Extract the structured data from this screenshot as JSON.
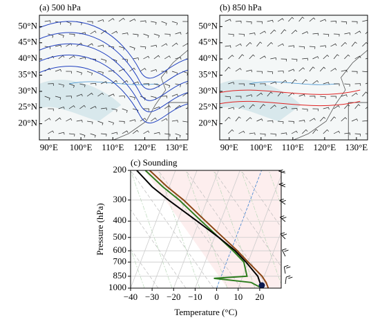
{
  "chart_data": [
    {
      "type": "map",
      "title": "(a) 500 hPa",
      "xlim": [
        87,
        133.5
      ],
      "ylim": [
        15,
        53.5
      ],
      "xticks": [
        {
          "value": 90,
          "label": "90°E"
        },
        {
          "value": 100,
          "label": "100°E"
        },
        {
          "value": 110,
          "label": "110°E"
        },
        {
          "value": 120,
          "label": "120°E"
        },
        {
          "value": 130,
          "label": "130°E"
        }
      ],
      "yticks": [
        {
          "value": 20,
          "label": "20°N"
        },
        {
          "value": 25,
          "label": "25°N"
        },
        {
          "value": 30,
          "label": "30°N"
        },
        {
          "value": 35,
          "label": "35°N"
        },
        {
          "value": 40,
          "label": "40°N"
        },
        {
          "value": 45,
          "label": "45°N"
        },
        {
          "value": 50,
          "label": "50°N"
        }
      ],
      "contour_color": "#1f3fbf"
    },
    {
      "type": "map",
      "title": "(b) 850 hPa",
      "xlim": [
        87,
        133.5
      ],
      "ylim": [
        15,
        53.5
      ],
      "xticks": [
        {
          "value": 90,
          "label": "90°E"
        },
        {
          "value": 100,
          "label": "100°E"
        },
        {
          "value": 110,
          "label": "110°E"
        },
        {
          "value": 120,
          "label": "120°E"
        },
        {
          "value": 130,
          "label": "130°E"
        }
      ],
      "yticks": [
        {
          "value": 20,
          "label": "20°N"
        },
        {
          "value": 25,
          "label": "25°N"
        },
        {
          "value": 30,
          "label": "30°N"
        },
        {
          "value": 35,
          "label": "35°N"
        },
        {
          "value": 40,
          "label": "40°N"
        },
        {
          "value": 45,
          "label": "45°N"
        },
        {
          "value": 50,
          "label": "50°N"
        }
      ],
      "contour_color": "#e02020"
    },
    {
      "type": "skewt",
      "title": "(c) Sounding",
      "x_label": "Temperature (°C)",
      "y_label": "Pressure (hPa)",
      "xlim": [
        -40,
        30
      ],
      "ylim": [
        1000,
        200
      ],
      "log_y": true,
      "xticks": [
        {
          "value": -40,
          "label": "−40"
        },
        {
          "value": -30,
          "label": "−30"
        },
        {
          "value": -20,
          "label": "−20"
        },
        {
          "value": -10,
          "label": "−10"
        },
        0,
        10,
        20
      ],
      "yticks": [
        200,
        300,
        400,
        500,
        600,
        700,
        850,
        1000
      ],
      "series": [
        {
          "color": "#8b4513",
          "y": [
            1000,
            925,
            850,
            700,
            600,
            500,
            400,
            300,
            250,
            200
          ],
          "values": [
            24,
            22,
            19,
            10,
            3,
            -6,
            -17,
            -31,
            -41,
            -52
          ]
        },
        {
          "color": "#2e7d1e",
          "y": [
            1000,
            925,
            875,
            850,
            700,
            600,
            500,
            400,
            300,
            250,
            200
          ],
          "values": [
            21,
            15,
            -3,
            12,
            8,
            1,
            -8,
            -19,
            -33,
            -43,
            -54
          ]
        },
        {
          "color": "#000000",
          "y": [
            1000,
            850,
            700,
            600,
            500,
            400,
            300,
            250,
            200
          ],
          "values": [
            21,
            17,
            9,
            2,
            -8,
            -21,
            -38,
            -48,
            -58
          ]
        }
      ]
    }
  ]
}
